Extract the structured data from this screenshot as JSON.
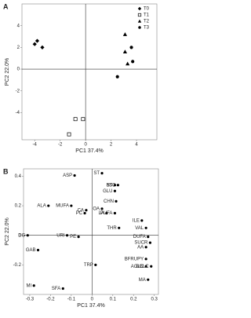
{
  "chart_data": [
    {
      "type": "scatter",
      "panel": "A",
      "xlabel": "PC1 37.4%",
      "ylabel": "PC2 22.0%",
      "xlim": [
        -5,
        5.6
      ],
      "ylim": [
        -6.5,
        6
      ],
      "xticks": [
        -4,
        -2,
        0,
        2,
        4
      ],
      "yticks": [
        -4,
        -2,
        0,
        2,
        4
      ],
      "zero_lines": true,
      "legend": "upper right",
      "series": [
        {
          "name": "T0",
          "marker": "diamond",
          "color": "#000000",
          "x": [
            -4.0,
            -3.8,
            -3.4
          ],
          "values": [
            2.3,
            2.6,
            2.0
          ]
        },
        {
          "name": "T1",
          "marker": "square-open",
          "color": "#000000",
          "x": [
            -0.8,
            -0.2,
            -1.3
          ],
          "values": [
            -4.6,
            -4.6,
            -6.0
          ]
        },
        {
          "name": "T2",
          "marker": "triangle",
          "color": "#000000",
          "x": [
            3.1,
            3.1,
            3.3
          ],
          "values": [
            3.2,
            1.6,
            0.5
          ]
        },
        {
          "name": "T3",
          "marker": "circle",
          "color": "#000000",
          "x": [
            3.6,
            3.7,
            2.5
          ],
          "values": [
            2.0,
            0.7,
            -0.7
          ]
        }
      ]
    },
    {
      "type": "scatter",
      "panel": "B",
      "xlabel": "PC1 37.4%",
      "ylabel": "PC2 22.0%",
      "xlim": [
        -0.33,
        0.32
      ],
      "ylim": [
        -0.4,
        0.45
      ],
      "xticks": [
        -0.3,
        -0.2,
        -0.1,
        0,
        0.1,
        0.2,
        0.3
      ],
      "yticks": [
        -0.2,
        0,
        0.2,
        0.4
      ],
      "zero_lines": true,
      "series": [
        {
          "marker": "circle",
          "color": "#000000",
          "point_labels": [
            "ASP",
            "ST",
            "ST",
            "bSC",
            "GLU",
            "ALA",
            "MUFA",
            "CHN",
            "CA",
            "OA",
            "PC",
            "LA",
            "PUFA",
            "ILE",
            "THR",
            "VAL",
            "DG",
            "URI",
            "PE",
            "DUFA",
            "SUCR",
            "AA",
            "GAB",
            "BFRUPY",
            "AGLC",
            "BGLC",
            "TRP",
            "MA",
            "MI",
            "SFA"
          ],
          "x": [
            -0.084,
            0.048,
            0.11,
            0.125,
            0.11,
            -0.21,
            -0.1,
            0.116,
            -0.028,
            0.048,
            -0.035,
            0.07,
            0.11,
            0.24,
            0.13,
            0.26,
            -0.31,
            -0.12,
            -0.065,
            0.27,
            0.28,
            0.26,
            -0.26,
            0.26,
            0.26,
            0.285,
            0.017,
            0.27,
            -0.28,
            -0.14
          ],
          "values": [
            0.405,
            0.42,
            0.34,
            0.34,
            0.3,
            0.2,
            0.2,
            0.23,
            0.17,
            0.18,
            0.15,
            0.15,
            0.15,
            0.1,
            0.05,
            0.05,
            0,
            0,
            -0.01,
            -0.01,
            -0.05,
            -0.08,
            -0.1,
            -0.16,
            -0.21,
            -0.21,
            -0.2,
            -0.3,
            -0.34,
            -0.36
          ]
        }
      ]
    }
  ]
}
